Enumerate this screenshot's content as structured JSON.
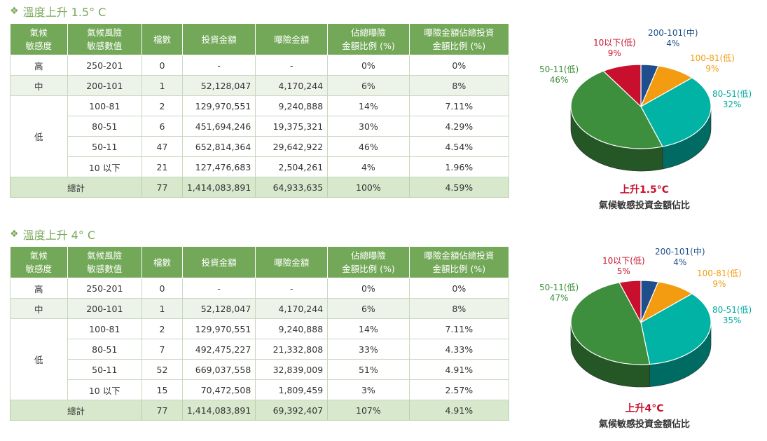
{
  "colors": {
    "header": "#72a857",
    "zebra": "#eef3ea",
    "total": "#d7e8cd",
    "accent": "#c8102e"
  },
  "headers": [
    "氣候\n敏感度",
    "氣候風險\n敏感數值",
    "檔數",
    "投資金額",
    "曝險金額",
    "佔總曝險\n金額比例 (%)",
    "曝險金額佔總投資\n金額比例 (%)"
  ],
  "sections": [
    {
      "title": "溫度上升 1.5° C",
      "rows": [
        {
          "group": "高",
          "range": "250-201",
          "count": "0",
          "invest": "-",
          "exposure": "-",
          "share": "0%",
          "ratio": "0%"
        },
        {
          "group": "中",
          "range": "200-101",
          "count": "1",
          "invest": "52,128,047",
          "exposure": "4,170,244",
          "share": "6%",
          "ratio": "8%"
        },
        {
          "group": "低",
          "range": "100-81",
          "count": "2",
          "invest": "129,970,551",
          "exposure": "9,240,888",
          "share": "14%",
          "ratio": "7.11%"
        },
        {
          "group": "",
          "range": "80-51",
          "count": "6",
          "invest": "451,694,246",
          "exposure": "19,375,321",
          "share": "30%",
          "ratio": "4.29%"
        },
        {
          "group": "",
          "range": "50-11",
          "count": "47",
          "invest": "652,814,364",
          "exposure": "29,642,922",
          "share": "46%",
          "ratio": "4.54%"
        },
        {
          "group": "",
          "range": "10 以下",
          "count": "21",
          "invest": "127,476,683",
          "exposure": "2,504,261",
          "share": "4%",
          "ratio": "1.96%"
        }
      ],
      "total": {
        "label": "總計",
        "count": "77",
        "invest": "1,414,083,891",
        "exposure": "64,933,635",
        "share": "100%",
        "ratio": "4.59%"
      }
    },
    {
      "title": "溫度上升 4° C",
      "rows": [
        {
          "group": "高",
          "range": "250-201",
          "count": "0",
          "invest": "-",
          "exposure": "-",
          "share": "0%",
          "ratio": "0%"
        },
        {
          "group": "中",
          "range": "200-101",
          "count": "1",
          "invest": "52,128,047",
          "exposure": "4,170,244",
          "share": "6%",
          "ratio": "8%"
        },
        {
          "group": "低",
          "range": "100-81",
          "count": "2",
          "invest": "129,970,551",
          "exposure": "9,240,888",
          "share": "14%",
          "ratio": "7.11%"
        },
        {
          "group": "",
          "range": "80-51",
          "count": "7",
          "invest": "492,475,227",
          "exposure": "21,332,808",
          "share": "33%",
          "ratio": "4.33%"
        },
        {
          "group": "",
          "range": "50-11",
          "count": "52",
          "invest": "669,037,558",
          "exposure": "32,839,009",
          "share": "51%",
          "ratio": "4.91%"
        },
        {
          "group": "",
          "range": "10 以下",
          "count": "15",
          "invest": "70,472,508",
          "exposure": "1,809,459",
          "share": "3%",
          "ratio": "2.57%"
        }
      ],
      "total": {
        "label": "總計",
        "count": "77",
        "invest": "1,414,083,891",
        "exposure": "69,392,407",
        "share": "107%",
        "ratio": "4.91%"
      }
    }
  ],
  "chart_data": [
    {
      "type": "pie",
      "title": "上升1.5°C",
      "subtitle": "氣候敏感投資金額佔比",
      "slices": [
        {
          "label": "200-101(中)",
          "value": 4,
          "color": "#1f4e8c"
        },
        {
          "label": "100-81(低)",
          "value": 9,
          "color": "#f39c12"
        },
        {
          "label": "80-51(低)",
          "value": 32,
          "color": "#00b3a4"
        },
        {
          "label": "50-11(低)",
          "value": 46,
          "color": "#3d8f3d"
        },
        {
          "label": "10以下(低)",
          "value": 9,
          "color": "#c8102e"
        }
      ]
    },
    {
      "type": "pie",
      "title": "上升4°C",
      "subtitle": "氣候敏感投資金額佔比",
      "slices": [
        {
          "label": "200-101(中)",
          "value": 4,
          "color": "#1f4e8c"
        },
        {
          "label": "100-81(低)",
          "value": 9,
          "color": "#f39c12"
        },
        {
          "label": "80-51(低)",
          "value": 35,
          "color": "#00b3a4"
        },
        {
          "label": "50-11(低)",
          "value": 47,
          "color": "#3d8f3d"
        },
        {
          "label": "10以下(低)",
          "value": 5,
          "color": "#c8102e"
        }
      ]
    }
  ]
}
